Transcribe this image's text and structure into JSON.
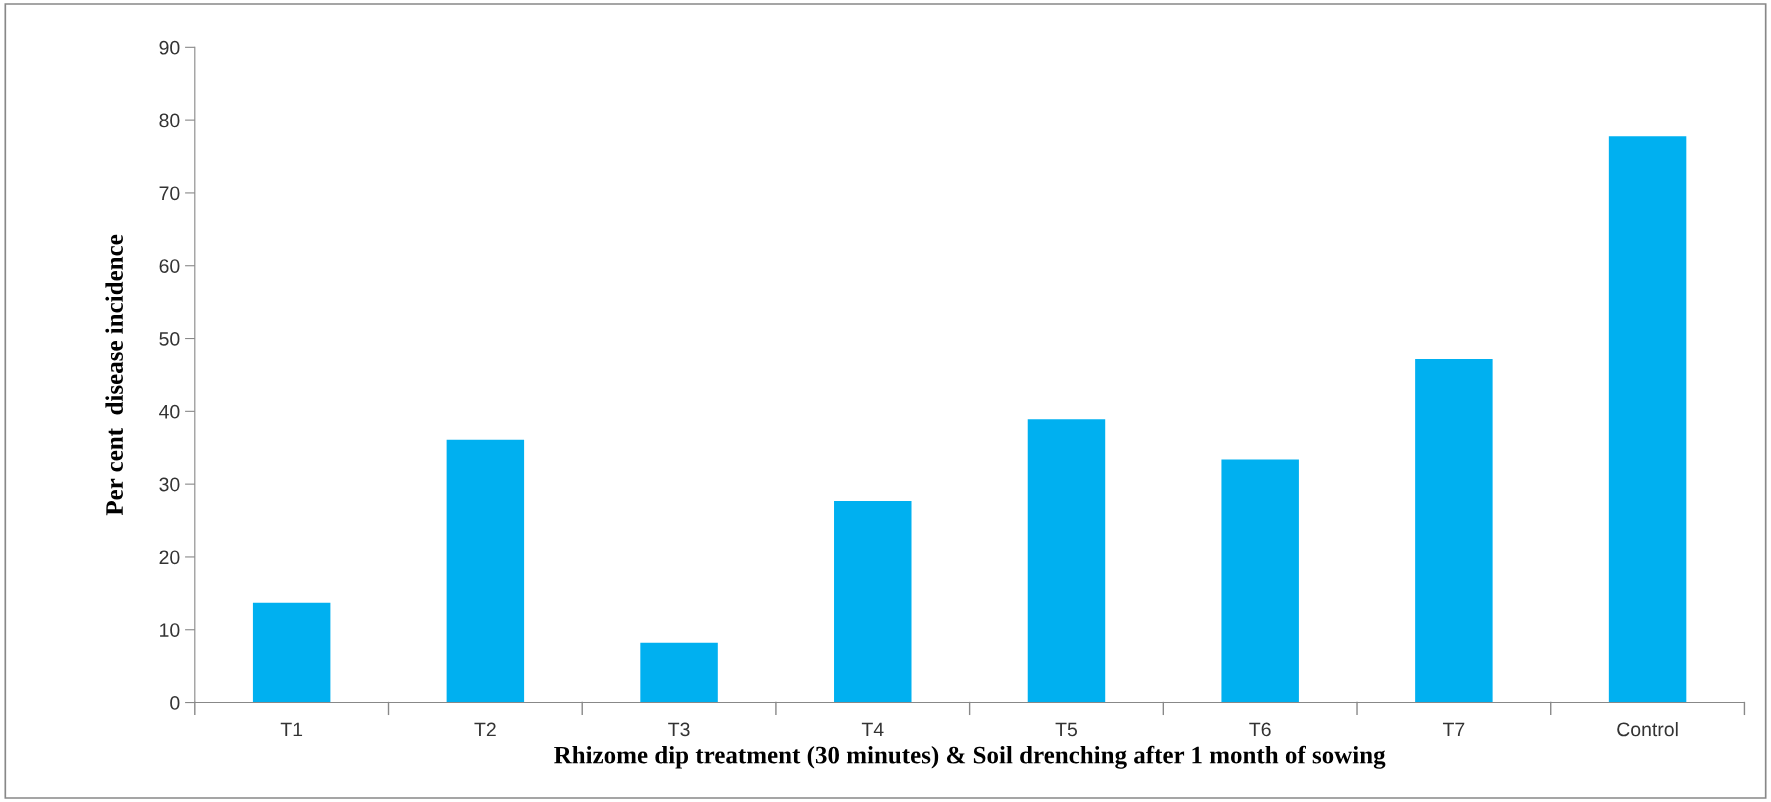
{
  "chart_data": {
    "type": "bar",
    "xlabel": "Rhizome dip treatment (30 minutes) & Soil drenching after 1 month of sowing",
    "ylabel": "Per cent  disease incidence",
    "categories": [
      "T1",
      "T2",
      "T3",
      "T4",
      "T5",
      "T6",
      "T7",
      "Control"
    ],
    "values": [
      13.7,
      36.1,
      8.2,
      27.7,
      38.9,
      33.4,
      47.2,
      77.8
    ],
    "color": "#00b0f0",
    "ylim": [
      0,
      90
    ],
    "yticks": [
      0,
      10,
      20,
      30,
      40,
      50,
      60,
      70,
      80,
      90
    ],
    "grid": false,
    "legend": false
  }
}
